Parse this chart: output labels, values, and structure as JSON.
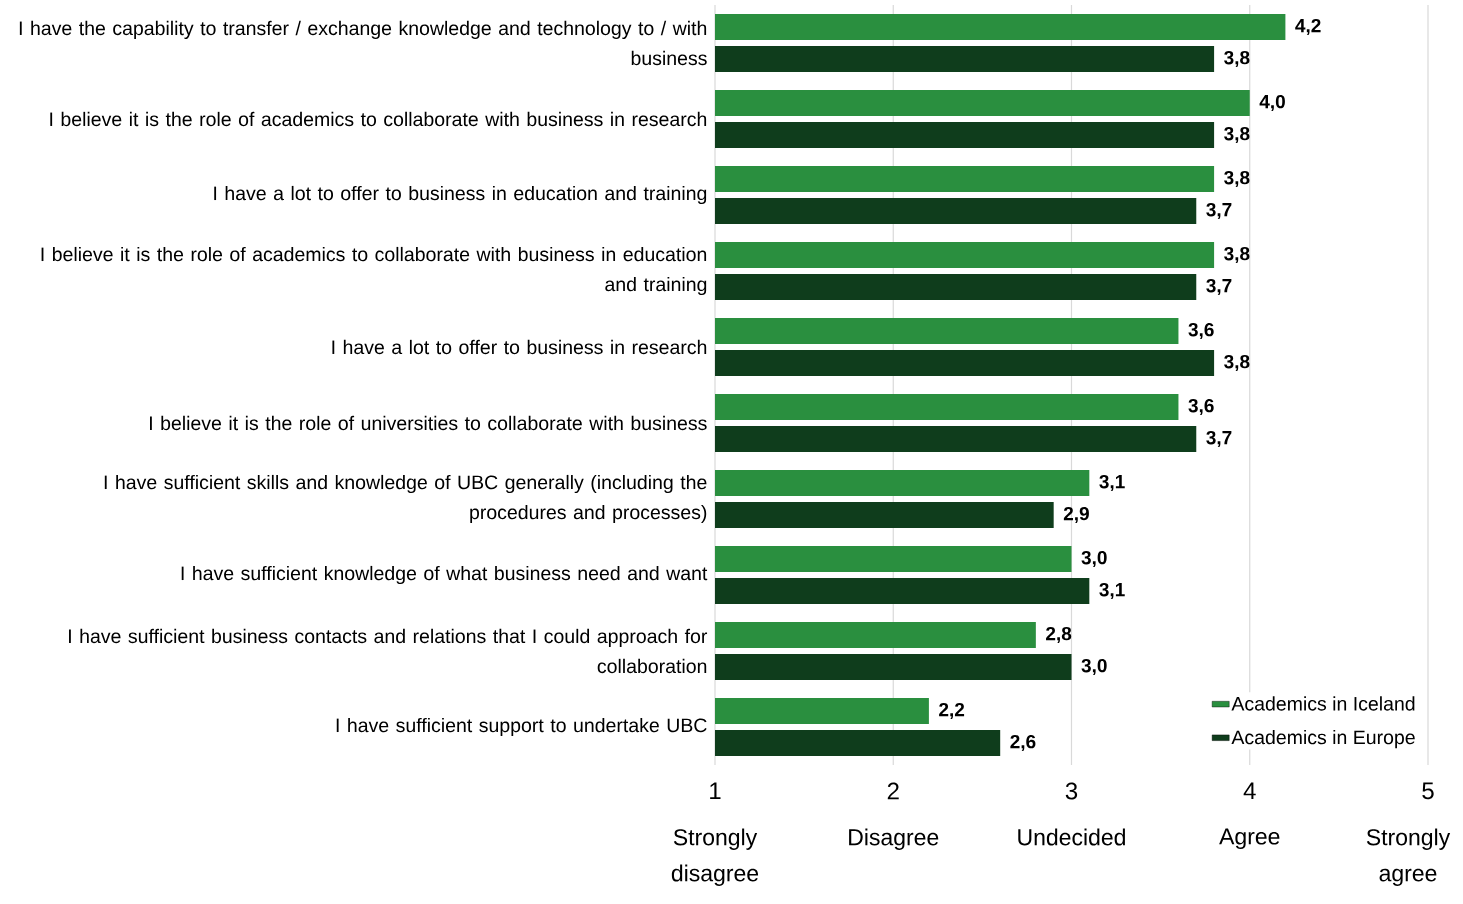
{
  "chart_data": {
    "type": "bar",
    "orientation": "horizontal",
    "categories": [
      "I have the capability to transfer / exchange knowledge and technology to / with business",
      "I believe it is the role of academics to collaborate with business in research",
      "I have a lot to offer to business in education and training",
      "I believe it is the role of academics to collaborate with business in education and training",
      "I have a lot to offer to business in research",
      "I believe it is the role of universities to collaborate with business",
      "I have sufficient skills and knowledge of UBC generally (including the procedures and processes)",
      "I have sufficient knowledge of what business need and want",
      "I have sufficient business contacts and relations that I could approach for collaboration",
      "I have sufficient support to undertake UBC"
    ],
    "series": [
      {
        "name": "Academics in Iceland",
        "color": "#2a8f3f",
        "values": [
          4.2,
          4.0,
          3.8,
          3.8,
          3.6,
          3.6,
          3.1,
          3.0,
          2.8,
          2.2
        ],
        "value_labels": [
          "4,2",
          "4,0",
          "3,8",
          "3,8",
          "3,6",
          "3,6",
          "3,1",
          "3,0",
          "2,8",
          "2,2"
        ]
      },
      {
        "name": "Academics in Europe",
        "color": "#0f3d1c",
        "values": [
          3.8,
          3.8,
          3.7,
          3.7,
          3.8,
          3.7,
          2.9,
          3.1,
          3.0,
          2.6
        ],
        "value_labels": [
          "3,8",
          "3,8",
          "3,7",
          "3,7",
          "3,8",
          "3,7",
          "2,9",
          "3,1",
          "3,0",
          "2,6"
        ]
      }
    ],
    "xlim": [
      1,
      5
    ],
    "xticks": [
      1,
      2,
      3,
      4,
      5
    ],
    "grid": "x",
    "legend": "bottom right",
    "annotations": [
      "Strongly disagree",
      "Disagree",
      "Undecided",
      "Agree",
      "Strongly agree"
    ]
  }
}
